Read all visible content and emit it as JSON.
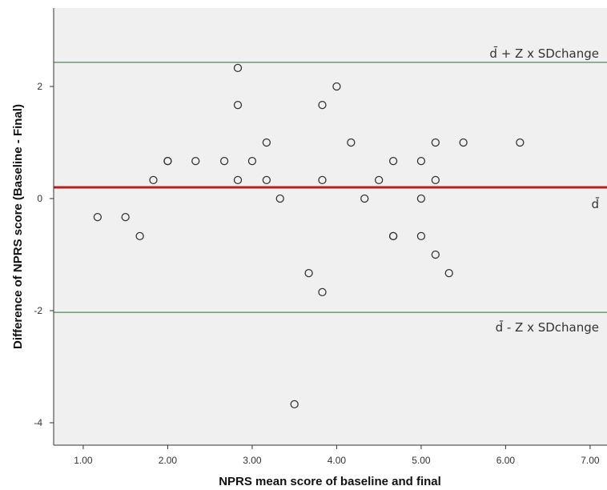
{
  "chart_data": {
    "type": "scatter",
    "title": "",
    "xlabel": "NPRS mean score of baseline and final",
    "ylabel": "Difference of NPRS score (Baseline - Final)",
    "xlim": [
      0.65,
      7.2
    ],
    "ylim": [
      -4.4,
      3.4
    ],
    "xticks": [
      "1.00",
      "2.00",
      "3.00",
      "4.00",
      "5.00",
      "6.00",
      "7.00"
    ],
    "yticks": [
      "-4",
      "-2",
      "0",
      "2"
    ],
    "grid": false,
    "legend": "none",
    "colors": {
      "plot_background": "#f0f0f0",
      "mean_line": "#b22222",
      "limit_lines": "#4e8a5a",
      "marker_edge": "#333333"
    },
    "reference_lines": [
      {
        "name": "mean",
        "y": 0.2,
        "label": "d̄",
        "color": "#b22222"
      },
      {
        "name": "upper-limit",
        "y": 2.43,
        "label": "d̄ + Z x SDchange",
        "color": "#4e8a5a"
      },
      {
        "name": "lower-limit",
        "y": -2.03,
        "label": "d̄ - Z x SDchange",
        "color": "#4e8a5a"
      }
    ],
    "points": [
      [
        1.17,
        -0.33
      ],
      [
        1.5,
        -0.33
      ],
      [
        1.67,
        -0.67
      ],
      [
        1.83,
        0.33
      ],
      [
        2.0,
        0.67
      ],
      [
        2.0,
        0.67
      ],
      [
        2.33,
        0.67
      ],
      [
        2.67,
        0.67
      ],
      [
        2.83,
        2.33
      ],
      [
        2.83,
        1.67
      ],
      [
        2.83,
        0.33
      ],
      [
        3.0,
        0.67
      ],
      [
        3.17,
        1.0
      ],
      [
        3.17,
        0.33
      ],
      [
        3.33,
        0.0
      ],
      [
        3.5,
        -3.67
      ],
      [
        3.67,
        -1.33
      ],
      [
        3.83,
        1.67
      ],
      [
        3.83,
        0.33
      ],
      [
        3.83,
        -1.67
      ],
      [
        4.0,
        2.0
      ],
      [
        4.17,
        1.0
      ],
      [
        4.33,
        0.0
      ],
      [
        4.5,
        0.33
      ],
      [
        4.67,
        0.67
      ],
      [
        4.67,
        -0.67
      ],
      [
        4.67,
        -0.67
      ],
      [
        5.0,
        0.67
      ],
      [
        5.0,
        0.0
      ],
      [
        5.0,
        -0.67
      ],
      [
        5.17,
        1.0
      ],
      [
        5.17,
        0.33
      ],
      [
        5.17,
        -1.0
      ],
      [
        5.33,
        -1.33
      ],
      [
        5.5,
        1.0
      ],
      [
        6.17,
        1.0
      ]
    ]
  }
}
